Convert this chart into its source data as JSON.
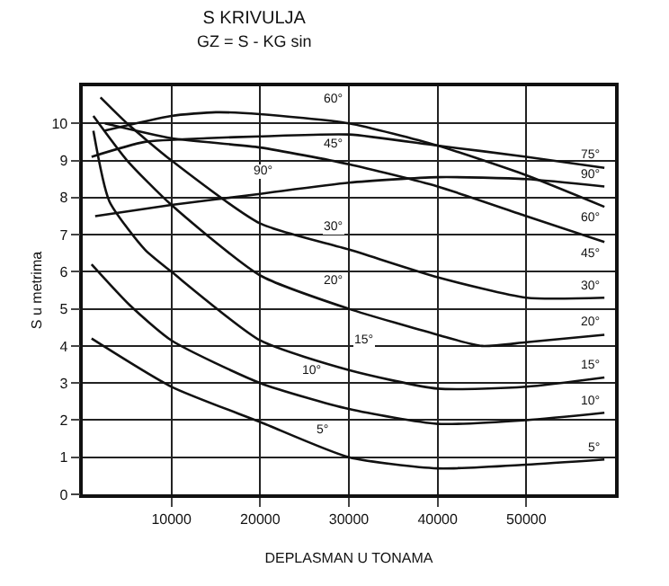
{
  "chart_data": {
    "type": "line",
    "title": "S KRIVULJA",
    "subtitle": "GZ = S - KG sin",
    "xlabel": "DEPLASMAN U TONAMA",
    "ylabel": "S u metrima",
    "xlim": [
      0,
      60000
    ],
    "xticks": [
      10000,
      20000,
      30000,
      40000,
      50000
    ],
    "ylim": [
      0,
      11
    ],
    "yticks": [
      0,
      1,
      2,
      3,
      4,
      5,
      6,
      7,
      8,
      9,
      10
    ],
    "grid": true,
    "legend": false,
    "marker": "none",
    "line_style": "solid",
    "series": [
      {
        "name": "5°",
        "color": "#111111",
        "x": [
          1000,
          10000,
          20000,
          30000,
          40000,
          50000,
          58800
        ],
        "values": [
          4.2,
          2.9,
          1.95,
          1.0,
          0.7,
          0.8,
          0.94
        ]
      },
      {
        "name": "10°",
        "color": "#111111",
        "x": [
          1000,
          5300,
          10000,
          20000,
          30000,
          40000,
          50000,
          58800
        ],
        "values": [
          6.2,
          5.1,
          4.15,
          3.0,
          2.3,
          1.9,
          2.0,
          2.2
        ]
      },
      {
        "name": "15°",
        "color": "#111111",
        "x": [
          1200,
          3000,
          7000,
          10000,
          20000,
          30000,
          40000,
          50000,
          58800
        ],
        "values": [
          9.8,
          7.9,
          6.6,
          6.0,
          4.15,
          3.35,
          2.85,
          2.9,
          3.15
        ]
      },
      {
        "name": "20°",
        "color": "#111111",
        "x": [
          1200,
          5000,
          10000,
          20000,
          30000,
          40000,
          45000,
          50000,
          58800
        ],
        "values": [
          10.2,
          9.0,
          7.8,
          5.9,
          5.0,
          4.3,
          4.0,
          4.1,
          4.3
        ]
      },
      {
        "name": "30°",
        "color": "#111111",
        "x": [
          2000,
          5000,
          10000,
          20000,
          30000,
          40000,
          50000,
          58800
        ],
        "values": [
          10.7,
          10.0,
          9.0,
          7.3,
          6.6,
          5.85,
          5.3,
          5.3
        ]
      },
      {
        "name": "45°",
        "color": "#111111",
        "x": [
          2500,
          10000,
          20000,
          30000,
          40000,
          50000,
          58800
        ],
        "values": [
          10.0,
          9.6,
          9.35,
          8.9,
          8.3,
          7.5,
          6.8
        ]
      },
      {
        "name": "60°",
        "color": "#111111",
        "x": [
          2400,
          10000,
          15000,
          20000,
          30000,
          40000,
          50000,
          58800
        ],
        "values": [
          9.8,
          10.2,
          10.3,
          10.25,
          10.0,
          9.4,
          8.6,
          7.75
        ]
      },
      {
        "name": "75°",
        "color": "#111111",
        "x": [
          1000,
          7000,
          14000,
          20000,
          30000,
          40000,
          50000,
          58800
        ],
        "values": [
          9.1,
          9.5,
          9.6,
          9.65,
          9.7,
          9.4,
          9.1,
          8.8
        ]
      },
      {
        "name": "90°",
        "color": "#111111",
        "x": [
          1400,
          10000,
          20000,
          30000,
          40000,
          50000,
          58800
        ],
        "values": [
          7.5,
          7.8,
          8.1,
          8.4,
          8.55,
          8.5,
          8.3
        ]
      }
    ],
    "annotations": [
      "60°",
      "45°",
      "90°",
      "30°",
      "20°",
      "15°",
      "10°",
      "5°"
    ]
  }
}
